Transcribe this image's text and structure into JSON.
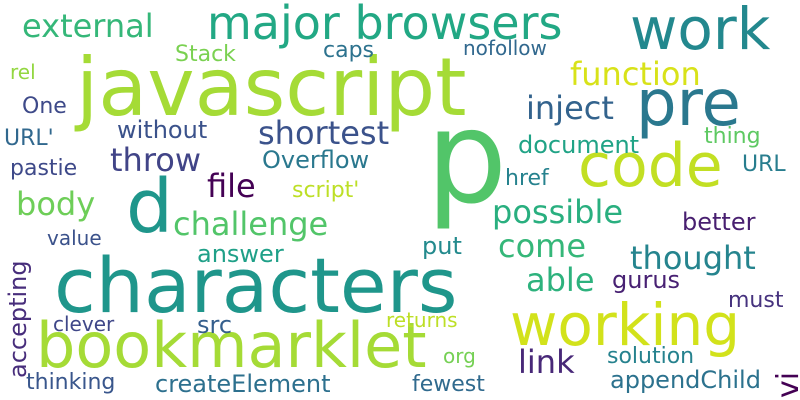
{
  "words": [
    {
      "text": "p",
      "color": "#52c569"
    },
    {
      "text": "javascript",
      "color": "#a5db36"
    },
    {
      "text": "characters",
      "color": "#1f968b"
    },
    {
      "text": "bookmarklet",
      "color": "#a5db36"
    },
    {
      "text": "major browsers",
      "color": "#22a884"
    },
    {
      "text": "work",
      "color": "#23888e"
    },
    {
      "text": "pre",
      "color": "#2a788e"
    },
    {
      "text": "code",
      "color": "#c2df23"
    },
    {
      "text": "working",
      "color": "#d2e21b"
    },
    {
      "text": "d",
      "color": "#1f968b"
    },
    {
      "text": "external",
      "color": "#35b779"
    },
    {
      "text": "function",
      "color": "#d8e219"
    },
    {
      "text": "inject",
      "color": "#33638d"
    },
    {
      "text": "shortest",
      "color": "#3b528b"
    },
    {
      "text": "throw",
      "color": "#414487"
    },
    {
      "text": "file",
      "color": "#440154"
    },
    {
      "text": "body",
      "color": "#6ece58"
    },
    {
      "text": "challenge",
      "color": "#52c569"
    },
    {
      "text": "possible",
      "color": "#29af7f"
    },
    {
      "text": "come",
      "color": "#35b779"
    },
    {
      "text": "thought",
      "color": "#25848e"
    },
    {
      "text": "able",
      "color": "#2db27d"
    },
    {
      "text": "link",
      "color": "#482878"
    },
    {
      "text": "Stack",
      "color": "#7ad151"
    },
    {
      "text": "caps",
      "color": "#2c728e"
    },
    {
      "text": "nofollow",
      "color": "#31688e"
    },
    {
      "text": "rel",
      "color": "#93d741"
    },
    {
      "text": "One",
      "color": "#3e4a89"
    },
    {
      "text": "URL'",
      "color": "#31688e"
    },
    {
      "text": "without",
      "color": "#3b528b"
    },
    {
      "text": "document",
      "color": "#20a386"
    },
    {
      "text": "thing",
      "color": "#5ec962"
    },
    {
      "text": "URL",
      "color": "#287d8e"
    },
    {
      "text": "Overflow",
      "color": "#2a788e"
    },
    {
      "text": "pastie",
      "color": "#3e4989"
    },
    {
      "text": "script'",
      "color": "#bddf26"
    },
    {
      "text": "href",
      "color": "#26828e"
    },
    {
      "text": "better",
      "color": "#481f70"
    },
    {
      "text": "value",
      "color": "#3b528b"
    },
    {
      "text": "answer",
      "color": "#1fa088"
    },
    {
      "text": "put",
      "color": "#238a8d"
    },
    {
      "text": "gurus",
      "color": "#482173"
    },
    {
      "text": "must",
      "color": "#46327e"
    },
    {
      "text": "accepting",
      "color": "#472d7b"
    },
    {
      "text": "clever",
      "color": "#3f4788"
    },
    {
      "text": "src",
      "color": "#355f8d"
    },
    {
      "text": "returns",
      "color": "#bddf26"
    },
    {
      "text": "org",
      "color": "#75d054"
    },
    {
      "text": "solution",
      "color": "#26828e"
    },
    {
      "text": "thinking",
      "color": "#39568c"
    },
    {
      "text": "createElement",
      "color": "#2d708e"
    },
    {
      "text": "fewest",
      "color": "#306a8e"
    },
    {
      "text": "appendChild",
      "color": "#2c728e"
    },
    {
      "text": "vi",
      "color": "#440154"
    }
  ]
}
